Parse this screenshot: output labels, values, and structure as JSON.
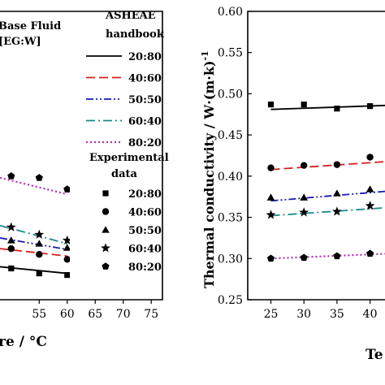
{
  "chart_data": [
    {
      "type": "scatter",
      "panel": "left",
      "legend": {
        "title_line1": "Base Fluid",
        "title_line2": "[EG:W]",
        "handbook_line1": "ASHEAE",
        "handbook_line2": "handbook",
        "experimental_line1": "Experimental",
        "experimental_line2": "data",
        "placement": "top"
      },
      "xlabel_visible": "re / °C",
      "x_ticks": [
        "55",
        "60",
        "65",
        "70",
        "75"
      ],
      "xlim": [
        48,
        77
      ],
      "ylim": [
        0.25,
        0.6
      ],
      "series": [
        {
          "name": "20:80",
          "color": "#000000",
          "line_style": "solid",
          "marker": "square",
          "x": [
            50,
            55,
            60
          ],
          "y": [
            0.288,
            0.282,
            0.28
          ],
          "line_x": [
            48,
            60
          ],
          "line_y": [
            0.29,
            0.282
          ]
        },
        {
          "name": "40:60",
          "color": "#d62020",
          "line_style": "dashed",
          "marker": "circle",
          "x": [
            50,
            55,
            60
          ],
          "y": [
            0.312,
            0.305,
            0.299
          ],
          "line_x": [
            48,
            60
          ],
          "line_y": [
            0.312,
            0.303
          ]
        },
        {
          "name": "50:50",
          "color": "#1a1ab0",
          "line_style": "dash-dot-dot",
          "marker": "triangle",
          "x": [
            50,
            55,
            60
          ],
          "y": [
            0.322,
            0.318,
            0.313
          ],
          "line_x": [
            48,
            60
          ],
          "line_y": [
            0.325,
            0.311
          ]
        },
        {
          "name": "60:40",
          "color": "#1a8a8a",
          "line_style": "dash-dot",
          "marker": "star",
          "x": [
            50,
            55,
            60
          ],
          "y": [
            0.338,
            0.329,
            0.322
          ],
          "line_x": [
            48,
            60
          ],
          "line_y": [
            0.34,
            0.318
          ]
        },
        {
          "name": "80:20",
          "color": "#b030b0",
          "line_style": "dotted",
          "marker": "pentagon",
          "x": [
            50,
            55,
            60
          ],
          "y": [
            0.4,
            0.398,
            0.384
          ],
          "line_x": [
            48,
            60
          ],
          "line_y": [
            0.398,
            0.378
          ]
        }
      ]
    },
    {
      "type": "scatter",
      "panel": "right",
      "ylabel": "Thermal conductivity  / W·(m·k)",
      "ylabel_exponent": "-1",
      "xlabel_visible": "Te",
      "x_ticks": [
        "25",
        "30",
        "35",
        "40"
      ],
      "y_ticks": [
        "0.25",
        "0.30",
        "0.35",
        "0.40",
        "0.45",
        "0.50",
        "0.55",
        "0.60"
      ],
      "xlim": [
        21.5,
        43
      ],
      "ylim": [
        0.25,
        0.6
      ],
      "series": [
        {
          "name": "20:80",
          "color": "#000000",
          "line_style": "solid",
          "marker": "square",
          "x": [
            25,
            30,
            35,
            40
          ],
          "y": [
            0.487,
            0.487,
            0.482,
            0.485
          ],
          "line_x": [
            25,
            43
          ],
          "line_y": [
            0.481,
            0.486
          ]
        },
        {
          "name": "40:60",
          "color": "#d62020",
          "line_style": "dashed",
          "marker": "circle",
          "x": [
            25,
            30,
            35,
            40
          ],
          "y": [
            0.41,
            0.413,
            0.414,
            0.423
          ],
          "line_x": [
            25,
            43
          ],
          "line_y": [
            0.408,
            0.418
          ]
        },
        {
          "name": "50:50",
          "color": "#1a1ab0",
          "line_style": "dash-dot-dot",
          "marker": "triangle",
          "x": [
            25,
            30,
            35,
            40
          ],
          "y": [
            0.374,
            0.374,
            0.379,
            0.384
          ],
          "line_x": [
            25,
            43
          ],
          "line_y": [
            0.37,
            0.382
          ]
        },
        {
          "name": "60:40",
          "color": "#1a8a8a",
          "line_style": "dash-dot",
          "marker": "star",
          "x": [
            25,
            30,
            35,
            40
          ],
          "y": [
            0.353,
            0.356,
            0.357,
            0.364
          ],
          "line_x": [
            25,
            43
          ],
          "line_y": [
            0.352,
            0.362
          ]
        },
        {
          "name": "80:20",
          "color": "#b030b0",
          "line_style": "dotted",
          "marker": "pentagon",
          "x": [
            25,
            30,
            35,
            40
          ],
          "y": [
            0.3,
            0.301,
            0.303,
            0.306
          ],
          "line_x": [
            25,
            43
          ],
          "line_y": [
            0.3,
            0.306
          ]
        }
      ]
    }
  ]
}
